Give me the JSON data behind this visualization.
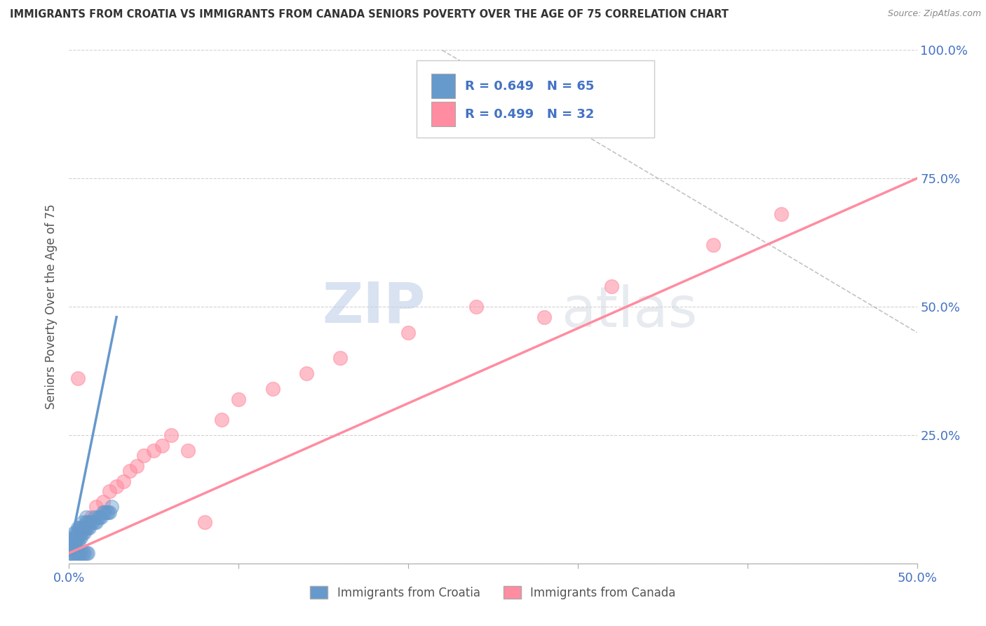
{
  "title": "IMMIGRANTS FROM CROATIA VS IMMIGRANTS FROM CANADA SENIORS POVERTY OVER THE AGE OF 75 CORRELATION CHART",
  "source": "Source: ZipAtlas.com",
  "ylabel": "Seniors Poverty Over the Age of 75",
  "xlim": [
    0.0,
    0.5
  ],
  "ylim": [
    0.0,
    1.0
  ],
  "croatia_color": "#6699CC",
  "canada_color": "#FF8CA0",
  "croatia_R": 0.649,
  "croatia_N": 65,
  "canada_R": 0.499,
  "canada_N": 32,
  "watermark_zip": "ZIP",
  "watermark_atlas": "atlas",
  "legend_label_1": "Immigrants from Croatia",
  "legend_label_2": "Immigrants from Canada",
  "croatia_scatter_x": [
    0.0005,
    0.001,
    0.001,
    0.0015,
    0.002,
    0.002,
    0.002,
    0.0025,
    0.003,
    0.003,
    0.003,
    0.003,
    0.0035,
    0.004,
    0.004,
    0.004,
    0.004,
    0.0045,
    0.005,
    0.005,
    0.005,
    0.005,
    0.006,
    0.006,
    0.006,
    0.007,
    0.007,
    0.007,
    0.008,
    0.008,
    0.008,
    0.009,
    0.009,
    0.01,
    0.01,
    0.01,
    0.011,
    0.011,
    0.012,
    0.012,
    0.013,
    0.014,
    0.015,
    0.015,
    0.016,
    0.017,
    0.018,
    0.019,
    0.02,
    0.021,
    0.001,
    0.002,
    0.003,
    0.004,
    0.005,
    0.006,
    0.007,
    0.008,
    0.009,
    0.01,
    0.011,
    0.022,
    0.023,
    0.024,
    0.025
  ],
  "croatia_scatter_y": [
    0.02,
    0.03,
    0.04,
    0.03,
    0.03,
    0.04,
    0.05,
    0.04,
    0.03,
    0.04,
    0.05,
    0.06,
    0.04,
    0.03,
    0.04,
    0.05,
    0.06,
    0.05,
    0.04,
    0.05,
    0.06,
    0.07,
    0.05,
    0.06,
    0.07,
    0.05,
    0.06,
    0.07,
    0.06,
    0.07,
    0.08,
    0.06,
    0.07,
    0.07,
    0.08,
    0.09,
    0.07,
    0.08,
    0.07,
    0.08,
    0.08,
    0.08,
    0.08,
    0.09,
    0.08,
    0.09,
    0.09,
    0.09,
    0.1,
    0.1,
    0.02,
    0.02,
    0.02,
    0.02,
    0.02,
    0.02,
    0.02,
    0.02,
    0.02,
    0.02,
    0.02,
    0.1,
    0.1,
    0.1,
    0.11
  ],
  "canada_scatter_x": [
    0.001,
    0.002,
    0.004,
    0.006,
    0.008,
    0.01,
    0.013,
    0.016,
    0.02,
    0.024,
    0.028,
    0.032,
    0.036,
    0.04,
    0.044,
    0.05,
    0.055,
    0.06,
    0.07,
    0.08,
    0.09,
    0.1,
    0.12,
    0.14,
    0.16,
    0.2,
    0.24,
    0.28,
    0.32,
    0.38,
    0.42,
    0.005
  ],
  "canada_scatter_y": [
    0.03,
    0.04,
    0.05,
    0.06,
    0.07,
    0.07,
    0.09,
    0.11,
    0.12,
    0.14,
    0.15,
    0.16,
    0.18,
    0.19,
    0.21,
    0.22,
    0.23,
    0.25,
    0.22,
    0.08,
    0.28,
    0.32,
    0.34,
    0.37,
    0.4,
    0.45,
    0.5,
    0.48,
    0.54,
    0.62,
    0.68,
    0.36
  ],
  "croatia_trend_x": [
    0.0,
    0.028
  ],
  "croatia_trend_y": [
    0.02,
    0.48
  ],
  "canada_trend_x": [
    0.0,
    0.5
  ],
  "canada_trend_y": [
    0.02,
    0.75
  ],
  "ref_line_x": [
    0.22,
    0.5
  ],
  "ref_line_y": [
    1.0,
    0.45
  ],
  "background_color": "#FFFFFF",
  "grid_color": "#CCCCCC",
  "tick_color": "#4472C4",
  "title_color": "#333333",
  "source_color": "#888888",
  "ylabel_color": "#555555"
}
